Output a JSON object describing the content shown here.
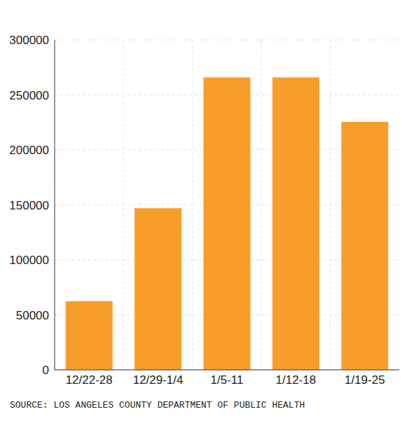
{
  "chart_data": {
    "type": "bar",
    "categories": [
      "12/22-28",
      "12/29-1/4",
      "1/5-11",
      "1/12-18",
      "1/19-25"
    ],
    "values": [
      62500,
      147000,
      266000,
      266000,
      225500
    ],
    "color": "#f99d2a",
    "ylim": [
      0,
      300000
    ],
    "yticks": [
      0,
      50000,
      100000,
      150000,
      200000,
      250000,
      300000
    ],
    "grid": true,
    "source": "SOURCE: LOS ANGELES COUNTY DEPARTMENT OF PUBLIC HEALTH"
  }
}
